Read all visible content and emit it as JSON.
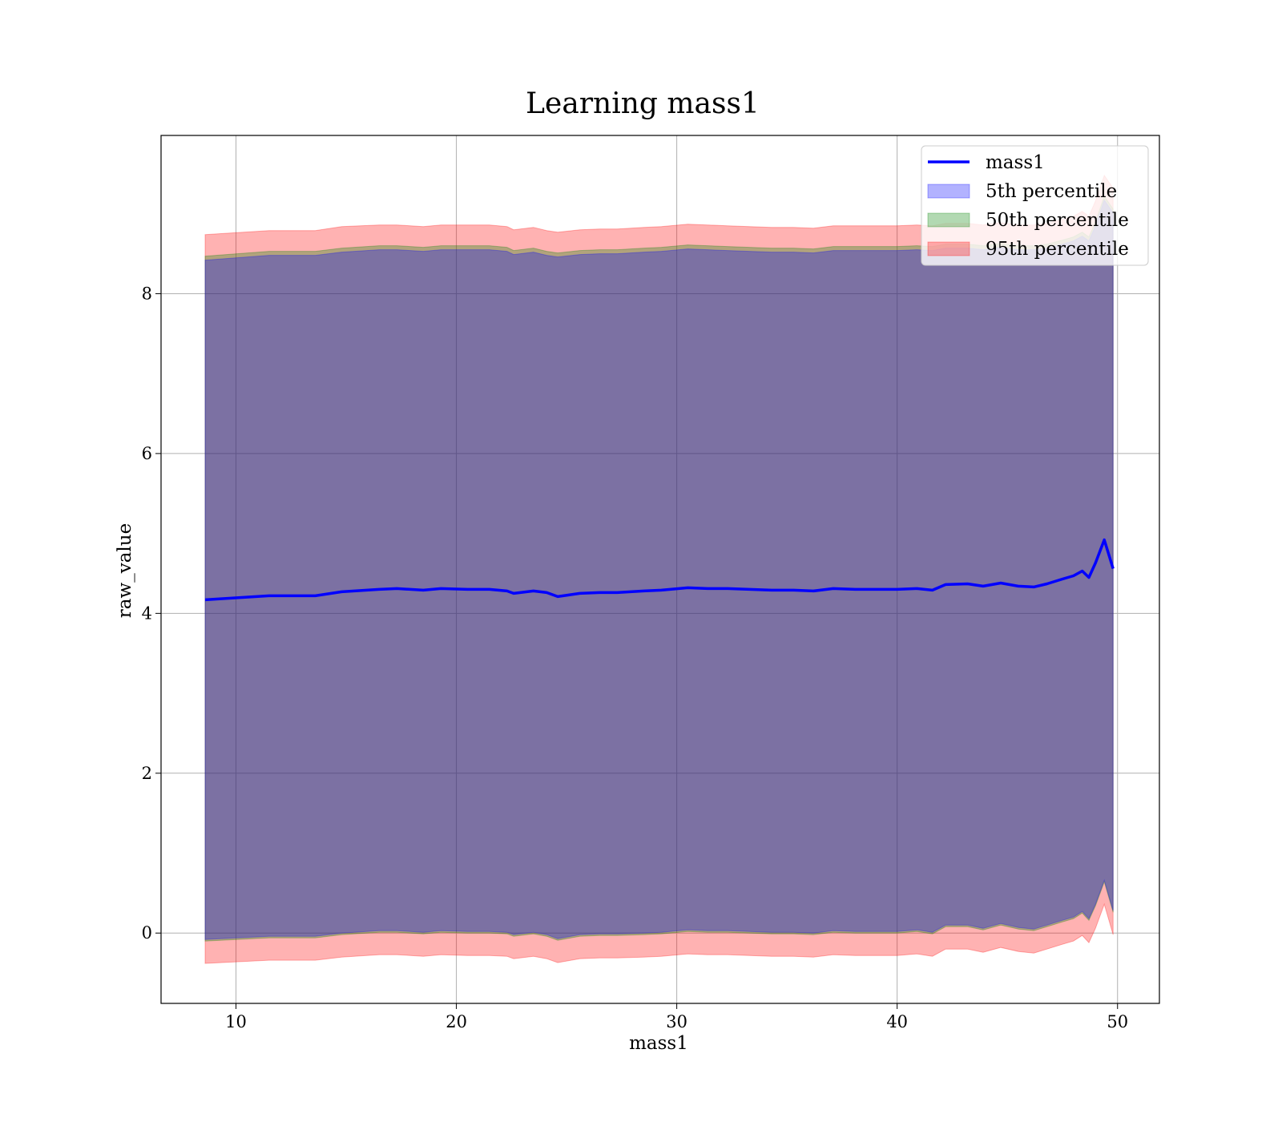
{
  "chart_data": {
    "type": "area",
    "title": "Learning mass1",
    "xlabel": "mass1",
    "ylabel": "raw_value",
    "xlim": [
      6.6,
      51.9
    ],
    "ylim": [
      -0.88,
      9.98
    ],
    "xticks": [
      10,
      20,
      30,
      40,
      50
    ],
    "yticks": [
      0,
      2,
      4,
      6,
      8
    ],
    "grid": true,
    "legend_position": "top-right",
    "x": [
      8.6,
      11.5,
      13.6,
      14.8,
      16.5,
      17.3,
      18.5,
      19.3,
      20.5,
      21.5,
      22.3,
      22.6,
      23.5,
      24.1,
      24.6,
      25.6,
      26.5,
      27.3,
      28.5,
      29.3,
      30.5,
      31.4,
      32.3,
      33.3,
      34.3,
      35.3,
      36.2,
      37.1,
      38.1,
      39.1,
      40.0,
      40.9,
      41.6,
      42.2,
      43.2,
      43.9,
      44.7,
      45.5,
      46.2,
      46.8,
      47.5,
      48.0,
      48.4,
      48.7,
      49.0,
      49.4,
      49.8
    ],
    "series": [
      {
        "name": "mass1",
        "values": [
          4.17,
          4.22,
          4.22,
          4.27,
          4.3,
          4.31,
          4.29,
          4.31,
          4.3,
          4.3,
          4.28,
          4.25,
          4.28,
          4.26,
          4.21,
          4.25,
          4.26,
          4.26,
          4.28,
          4.29,
          4.32,
          4.31,
          4.31,
          4.3,
          4.29,
          4.29,
          4.28,
          4.31,
          4.3,
          4.3,
          4.3,
          4.31,
          4.29,
          4.36,
          4.37,
          4.34,
          4.38,
          4.34,
          4.33,
          4.37,
          4.43,
          4.47,
          4.53,
          4.45,
          4.63,
          4.92,
          4.56
        ]
      },
      {
        "name": "5th percentile",
        "lower": [
          -0.08,
          -0.04,
          -0.04,
          0.0,
          0.03,
          0.03,
          0.01,
          0.03,
          0.02,
          0.02,
          0.01,
          -0.02,
          0.01,
          -0.02,
          -0.07,
          -0.02,
          -0.01,
          -0.01,
          0.0,
          0.01,
          0.04,
          0.03,
          0.03,
          0.02,
          0.01,
          0.01,
          0.0,
          0.03,
          0.02,
          0.02,
          0.02,
          0.04,
          0.01,
          0.1,
          0.1,
          0.06,
          0.12,
          0.07,
          0.05,
          0.1,
          0.16,
          0.2,
          0.27,
          0.18,
          0.36,
          0.66,
          0.28
        ],
        "upper": [
          8.42,
          8.48,
          8.48,
          8.52,
          8.55,
          8.55,
          8.53,
          8.55,
          8.55,
          8.55,
          8.53,
          8.49,
          8.52,
          8.48,
          8.46,
          8.49,
          8.5,
          8.5,
          8.52,
          8.53,
          8.56,
          8.55,
          8.54,
          8.53,
          8.52,
          8.52,
          8.51,
          8.54,
          8.54,
          8.54,
          8.54,
          8.55,
          8.54,
          8.57,
          8.57,
          8.55,
          8.58,
          8.55,
          8.55,
          8.57,
          8.62,
          8.66,
          8.72,
          8.66,
          8.85,
          9.17,
          9.01
        ]
      },
      {
        "name": "50th percentile",
        "lower": [
          -0.1,
          -0.06,
          -0.06,
          -0.02,
          0.01,
          0.01,
          -0.01,
          0.01,
          0.0,
          0.0,
          -0.01,
          -0.04,
          -0.01,
          -0.04,
          -0.09,
          -0.04,
          -0.03,
          -0.03,
          -0.02,
          -0.01,
          0.02,
          0.01,
          0.01,
          0.0,
          -0.01,
          -0.01,
          -0.02,
          0.01,
          0.0,
          0.0,
          0.0,
          0.02,
          -0.01,
          0.08,
          0.08,
          0.04,
          0.1,
          0.05,
          0.03,
          0.08,
          0.14,
          0.18,
          0.25,
          0.16,
          0.34,
          0.64,
          0.26
        ],
        "upper": [
          8.47,
          8.53,
          8.53,
          8.57,
          8.6,
          8.6,
          8.58,
          8.6,
          8.6,
          8.6,
          8.58,
          8.54,
          8.57,
          8.53,
          8.51,
          8.54,
          8.55,
          8.55,
          8.57,
          8.58,
          8.61,
          8.6,
          8.59,
          8.58,
          8.57,
          8.57,
          8.56,
          8.59,
          8.59,
          8.59,
          8.59,
          8.6,
          8.59,
          8.62,
          8.62,
          8.6,
          8.63,
          8.6,
          8.6,
          8.62,
          8.67,
          8.71,
          8.77,
          8.71,
          8.9,
          9.22,
          9.06
        ]
      },
      {
        "name": "95th percentile",
        "lower": [
          -0.38,
          -0.34,
          -0.34,
          -0.3,
          -0.27,
          -0.27,
          -0.29,
          -0.27,
          -0.28,
          -0.28,
          -0.29,
          -0.32,
          -0.29,
          -0.32,
          -0.37,
          -0.32,
          -0.31,
          -0.31,
          -0.3,
          -0.29,
          -0.26,
          -0.27,
          -0.27,
          -0.28,
          -0.29,
          -0.29,
          -0.3,
          -0.27,
          -0.28,
          -0.28,
          -0.28,
          -0.26,
          -0.29,
          -0.2,
          -0.2,
          -0.24,
          -0.18,
          -0.23,
          -0.25,
          -0.2,
          -0.14,
          -0.1,
          -0.03,
          -0.12,
          0.06,
          0.36,
          -0.02
        ],
        "upper": [
          8.74,
          8.79,
          8.79,
          8.84,
          8.86,
          8.86,
          8.84,
          8.86,
          8.86,
          8.86,
          8.84,
          8.8,
          8.83,
          8.79,
          8.77,
          8.8,
          8.81,
          8.81,
          8.83,
          8.84,
          8.87,
          8.86,
          8.85,
          8.84,
          8.83,
          8.83,
          8.82,
          8.85,
          8.85,
          8.85,
          8.85,
          8.86,
          8.85,
          8.88,
          8.88,
          8.86,
          8.89,
          8.86,
          8.86,
          8.88,
          8.93,
          8.97,
          9.03,
          8.97,
          9.16,
          9.48,
          9.32
        ]
      }
    ],
    "colors": {
      "mass1": "#0000ff",
      "5th percentile": "#0000ff",
      "50th percentile": "#008000",
      "95th percentile": "#ff0000"
    }
  }
}
